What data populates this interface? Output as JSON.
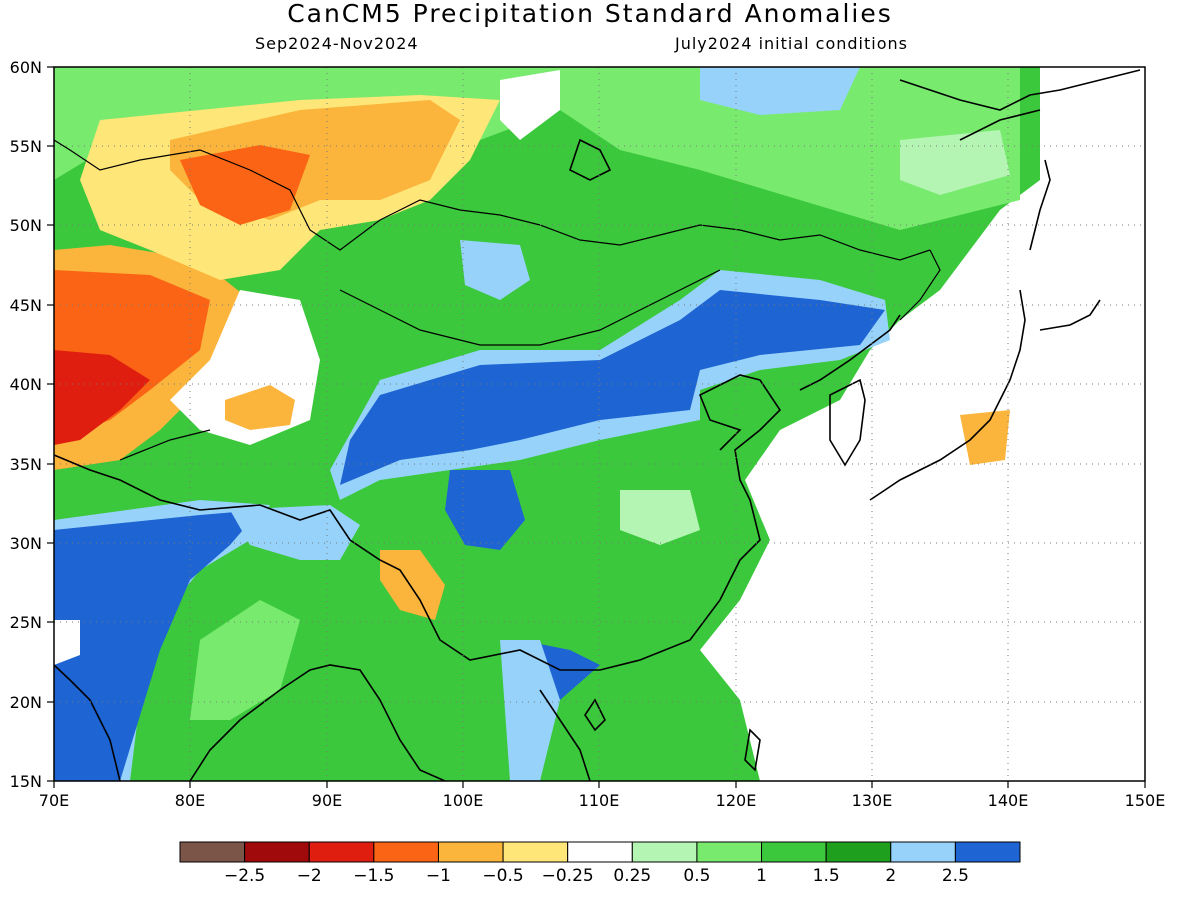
{
  "title": "CanCM5 Precipitation Standard Anomalies",
  "subtitle_left": "Sep2024-Nov2024",
  "subtitle_right": "July2024 initial conditions",
  "map": {
    "lon_range": [
      70,
      150
    ],
    "lat_range": [
      15,
      60
    ],
    "x_ticks": [
      "70E",
      "80E",
      "90E",
      "100E",
      "110E",
      "120E",
      "130E",
      "140E",
      "150E"
    ],
    "y_ticks": [
      "15N",
      "20N",
      "25N",
      "30N",
      "35N",
      "40N",
      "45N",
      "50N",
      "55N",
      "60N"
    ],
    "gridlines": "dotted"
  },
  "colorbar": {
    "colors": [
      "#7b5548",
      "#a00a0a",
      "#e01e10",
      "#fa6414",
      "#fbb43c",
      "#ffe678",
      "#ffffff",
      "#b4f5b4",
      "#78eb6e",
      "#3cc83c",
      "#1ea01e",
      "#96d2fa",
      "#1e64d2"
    ],
    "labels": [
      "-2.5",
      "-2",
      "-1.5",
      "-1",
      "-0.5",
      "-0.25",
      "0.25",
      "0.5",
      "1",
      "1.5",
      "2",
      "2.5"
    ]
  },
  "legend_colors": {
    "ocean": "#ffffff",
    "coast": "#000000"
  }
}
